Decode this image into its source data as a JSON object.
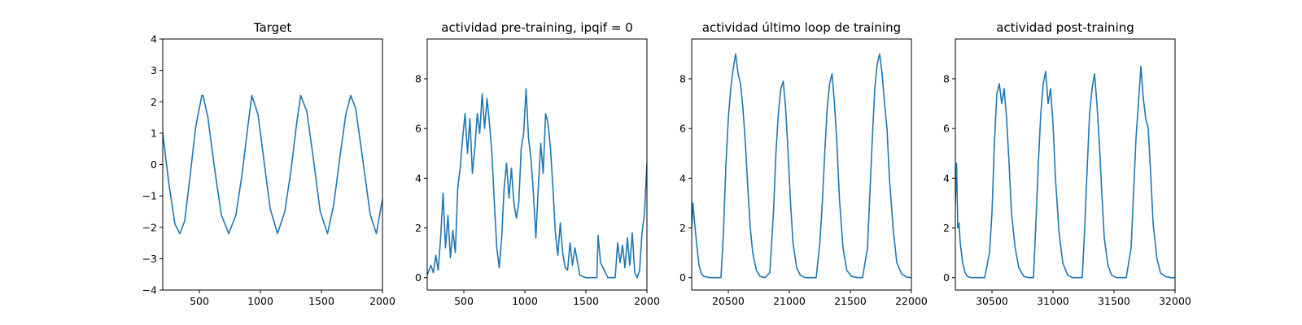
{
  "figure": {
    "line_color": "#1f77b4"
  },
  "chart_data": [
    {
      "type": "line",
      "title": "Target",
      "xlabel": "",
      "ylabel": "",
      "xlim": [
        200,
        2000
      ],
      "ylim": [
        -4,
        4
      ],
      "xticks": [
        500,
        1000,
        1500,
        2000
      ],
      "yticks": [
        -4,
        -3,
        -2,
        -1,
        0,
        1,
        2,
        3,
        4
      ],
      "grid": false,
      "x": [
        200,
        250,
        300,
        340,
        380,
        420,
        470,
        520,
        530,
        570,
        620,
        680,
        740,
        800,
        850,
        900,
        930,
        980,
        1030,
        1080,
        1140,
        1200,
        1250,
        1300,
        1330,
        1380,
        1430,
        1490,
        1550,
        1600,
        1650,
        1700,
        1740,
        1780,
        1830,
        1900,
        1950,
        2000
      ],
      "y": [
        1.0,
        -0.6,
        -1.9,
        -2.2,
        -1.8,
        -0.5,
        1.2,
        2.2,
        2.2,
        1.5,
        0.0,
        -1.6,
        -2.2,
        -1.6,
        -0.3,
        1.3,
        2.2,
        1.6,
        0.1,
        -1.4,
        -2.2,
        -1.5,
        -0.2,
        1.4,
        2.2,
        1.7,
        0.3,
        -1.5,
        -2.2,
        -1.3,
        0.2,
        1.6,
        2.2,
        1.8,
        0.4,
        -1.6,
        -2.2,
        -1.1
      ]
    },
    {
      "type": "line",
      "title": "actividad pre-training, ipqif = 0",
      "xlabel": "",
      "ylabel": "",
      "xlim": [
        200,
        2000
      ],
      "ylim": [
        -0.5,
        9.6
      ],
      "xticks": [
        500,
        1000,
        1500,
        2000
      ],
      "yticks": [
        0,
        2,
        4,
        6,
        8
      ],
      "grid": false,
      "x": [
        200,
        230,
        250,
        270,
        290,
        310,
        330,
        350,
        370,
        390,
        410,
        430,
        450,
        470,
        490,
        510,
        530,
        550,
        570,
        590,
        610,
        630,
        650,
        670,
        690,
        710,
        730,
        750,
        770,
        790,
        810,
        830,
        850,
        870,
        890,
        910,
        930,
        950,
        970,
        990,
        1010,
        1030,
        1050,
        1070,
        1090,
        1110,
        1130,
        1150,
        1170,
        1190,
        1210,
        1230,
        1250,
        1270,
        1290,
        1310,
        1330,
        1350,
        1370,
        1390,
        1410,
        1450,
        1500,
        1550,
        1590,
        1600,
        1620,
        1650,
        1680,
        1710,
        1740,
        1760,
        1780,
        1800,
        1820,
        1840,
        1860,
        1880,
        1900,
        1920,
        1940,
        1960,
        1980,
        2000
      ],
      "y": [
        0.1,
        0.5,
        0.2,
        0.9,
        0.3,
        1.6,
        3.4,
        1.2,
        2.5,
        0.8,
        1.9,
        1.0,
        3.6,
        4.4,
        5.6,
        6.6,
        5.0,
        6.4,
        4.2,
        5.2,
        6.6,
        5.8,
        7.4,
        6.0,
        7.2,
        6.2,
        5.0,
        3.0,
        1.2,
        0.4,
        1.6,
        3.6,
        4.6,
        3.2,
        4.4,
        3.0,
        2.4,
        3.0,
        5.2,
        5.8,
        7.6,
        5.6,
        4.8,
        3.4,
        1.6,
        3.6,
        5.4,
        4.2,
        6.6,
        6.2,
        5.2,
        3.6,
        1.8,
        0.9,
        2.2,
        1.0,
        0.4,
        0.3,
        1.4,
        0.5,
        1.2,
        0.1,
        0.0,
        0.0,
        0.0,
        1.7,
        0.6,
        0.3,
        0.0,
        0.0,
        0.0,
        1.4,
        0.6,
        1.3,
        0.4,
        1.6,
        0.5,
        1.8,
        0.2,
        0.0,
        0.3,
        1.8,
        2.6,
        4.6
      ]
    },
    {
      "type": "line",
      "title": "actividad último loop de training",
      "xlabel": "",
      "ylabel": "",
      "xlim": [
        20200,
        22000
      ],
      "ylim": [
        -0.5,
        9.6
      ],
      "xticks": [
        20500,
        21000,
        21500,
        22000
      ],
      "yticks": [
        0,
        2,
        4,
        6,
        8
      ],
      "grid": false,
      "x": [
        20200,
        20210,
        20220,
        20240,
        20260,
        20280,
        20300,
        20350,
        20400,
        20440,
        20460,
        20480,
        20500,
        20520,
        20540,
        20560,
        20580,
        20600,
        20620,
        20640,
        20660,
        20680,
        20700,
        20730,
        20760,
        20800,
        20840,
        20870,
        20890,
        20910,
        20930,
        20950,
        20970,
        20990,
        21010,
        21030,
        21060,
        21090,
        21130,
        21180,
        21220,
        21250,
        21270,
        21290,
        21310,
        21330,
        21350,
        21370,
        21390,
        21410,
        21440,
        21470,
        21510,
        21560,
        21600,
        21640,
        21660,
        21680,
        21700,
        21720,
        21740,
        21760,
        21780,
        21800,
        21820,
        21850,
        21880,
        21920,
        21960,
        22000
      ],
      "y": [
        2.0,
        3.0,
        2.4,
        1.4,
        0.5,
        0.15,
        0.05,
        0.0,
        0.0,
        0.0,
        1.8,
        4.5,
        6.4,
        7.6,
        8.4,
        9.0,
        8.2,
        7.8,
        6.8,
        5.4,
        3.6,
        2.0,
        1.0,
        0.3,
        0.05,
        0.0,
        0.2,
        2.6,
        5.0,
        6.6,
        7.6,
        7.9,
        6.8,
        5.0,
        3.0,
        1.4,
        0.4,
        0.1,
        0.0,
        0.0,
        0.0,
        1.4,
        3.0,
        5.0,
        6.8,
        7.8,
        8.2,
        7.0,
        5.4,
        3.2,
        1.2,
        0.3,
        0.05,
        0.0,
        0.0,
        1.2,
        3.4,
        5.6,
        7.6,
        8.6,
        9.0,
        8.2,
        7.0,
        6.0,
        4.0,
        2.0,
        0.6,
        0.15,
        0.02,
        0.0
      ]
    },
    {
      "type": "line",
      "title": "actividad post-training",
      "xlabel": "",
      "ylabel": "",
      "xlim": [
        30200,
        32000
      ],
      "ylim": [
        -0.5,
        9.6
      ],
      "xticks": [
        30500,
        31000,
        31500,
        32000
      ],
      "yticks": [
        0,
        2,
        4,
        6,
        8
      ],
      "grid": false,
      "x": [
        30200,
        30210,
        30220,
        30230,
        30240,
        30260,
        30280,
        30300,
        30330,
        30360,
        30400,
        30440,
        30480,
        30500,
        30520,
        30540,
        30560,
        30580,
        30600,
        30620,
        30640,
        30660,
        30690,
        30720,
        30760,
        30800,
        30840,
        30860,
        30880,
        30900,
        30920,
        30940,
        30960,
        30980,
        31000,
        31020,
        31050,
        31080,
        31120,
        31160,
        31200,
        31240,
        31260,
        31280,
        31300,
        31320,
        31340,
        31360,
        31380,
        31400,
        31420,
        31450,
        31480,
        31520,
        31560,
        31600,
        31640,
        31660,
        31680,
        31700,
        31720,
        31740,
        31760,
        31780,
        31800,
        31820,
        31850,
        31880,
        31920,
        31960,
        32000
      ],
      "y": [
        3.0,
        4.6,
        2.0,
        2.2,
        1.4,
        0.6,
        0.2,
        0.05,
        0.0,
        0.0,
        0.0,
        0.0,
        1.0,
        2.6,
        5.4,
        7.4,
        7.8,
        7.0,
        7.6,
        6.4,
        4.6,
        2.6,
        1.2,
        0.4,
        0.05,
        0.0,
        0.0,
        2.2,
        4.6,
        6.6,
        7.8,
        8.3,
        7.0,
        7.6,
        6.2,
        4.0,
        1.8,
        0.6,
        0.1,
        0.0,
        0.0,
        0.0,
        2.0,
        4.4,
        6.6,
        7.6,
        8.2,
        7.0,
        5.4,
        3.4,
        1.6,
        0.5,
        0.1,
        0.0,
        0.0,
        0.0,
        1.2,
        3.4,
        5.6,
        7.0,
        8.5,
        7.2,
        6.4,
        6.0,
        4.2,
        2.2,
        0.8,
        0.2,
        0.05,
        0.0,
        0.0
      ]
    }
  ]
}
